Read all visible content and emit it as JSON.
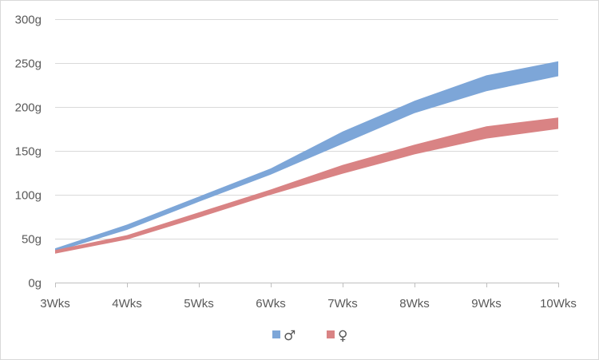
{
  "chart_data": {
    "type": "area",
    "title": "",
    "xlabel": "",
    "ylabel": "",
    "categories": [
      "3Wks",
      "4Wks",
      "5Wks",
      "6Wks",
      "7Wks",
      "8Wks",
      "9Wks",
      "10Wks"
    ],
    "ylim": [
      0,
      300
    ],
    "yticks": [
      0,
      50,
      100,
      150,
      200,
      250,
      300
    ],
    "ytick_labels": [
      "0g",
      "50g",
      "100g",
      "150g",
      "200g",
      "250g",
      "300g"
    ],
    "grid": true,
    "legend_position": "bottom",
    "series": [
      {
        "name": "♂",
        "color": "#7da6d8",
        "lower": [
          35,
          60,
          92,
          123,
          158,
          193,
          218,
          235
        ],
        "upper": [
          39,
          66,
          98,
          130,
          172,
          207,
          236,
          252
        ]
      },
      {
        "name": "♀",
        "color": "#d98384",
        "lower": [
          33,
          49,
          74,
          100,
          124,
          146,
          164,
          175
        ],
        "upper": [
          37,
          54,
          80,
          106,
          134,
          157,
          178,
          188
        ]
      }
    ]
  }
}
